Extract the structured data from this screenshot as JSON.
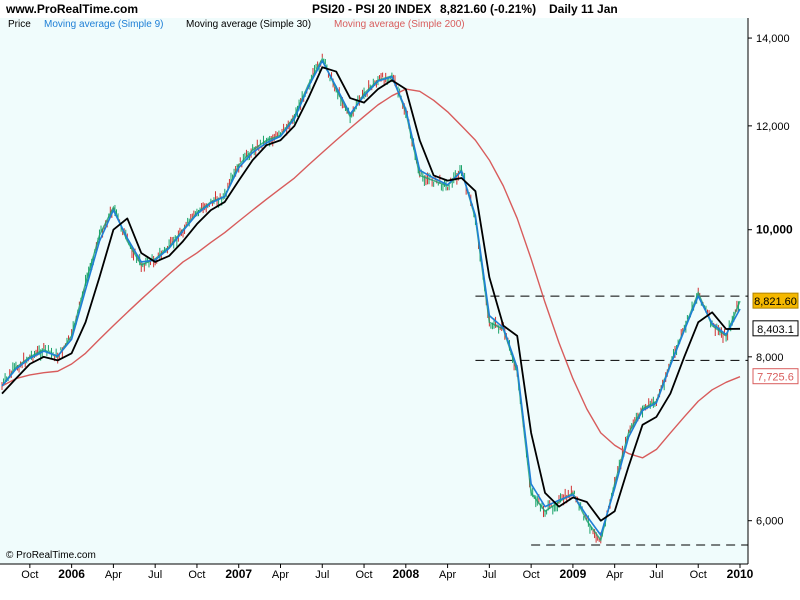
{
  "header": {
    "site": "www.ProRealTime.com",
    "title": "PSI20 - PSI 20 INDEX",
    "quote": "8,821.60 (-0.21%)",
    "period": "Daily 11 Jan"
  },
  "legend": [
    {
      "label": "Price",
      "color": "#000000"
    },
    {
      "label": "Moving average (Simple 9)",
      "color": "#1e7fd6"
    },
    {
      "label": "Moving average (Simple 30)",
      "color": "#000000"
    },
    {
      "label": "Moving average (Simple 200)",
      "color": "#d85c5c"
    }
  ],
  "copyright": "© ProRealTime.com",
  "colors": {
    "background": "#f0fcfc",
    "price_up": "#1aa36a",
    "price_down": "#d23232",
    "ma9": "#1e7fd6",
    "ma30": "#000000",
    "ma200": "#d85c5c",
    "last_label_bg": "#f5b800"
  },
  "chart_data": {
    "type": "line",
    "x_range": [
      "2005-08",
      "2010-01"
    ],
    "ylim": [
      5600,
      14100
    ],
    "y_scale": "log",
    "x_ticks": [
      {
        "label": "Oct",
        "date": "2005-10",
        "bold": false
      },
      {
        "label": "2006",
        "date": "2006-01",
        "bold": true
      },
      {
        "label": "Apr",
        "date": "2006-04",
        "bold": false
      },
      {
        "label": "Jul",
        "date": "2006-07",
        "bold": false
      },
      {
        "label": "Oct",
        "date": "2006-10",
        "bold": false
      },
      {
        "label": "2007",
        "date": "2007-01",
        "bold": true
      },
      {
        "label": "Apr",
        "date": "2007-04",
        "bold": false
      },
      {
        "label": "Jul",
        "date": "2007-07",
        "bold": false
      },
      {
        "label": "Oct",
        "date": "2007-10",
        "bold": false
      },
      {
        "label": "2008",
        "date": "2008-01",
        "bold": true
      },
      {
        "label": "Apr",
        "date": "2008-04",
        "bold": false
      },
      {
        "label": "Jul",
        "date": "2008-07",
        "bold": false
      },
      {
        "label": "Oct",
        "date": "2008-10",
        "bold": false
      },
      {
        "label": "2009",
        "date": "2009-01",
        "bold": true
      },
      {
        "label": "Apr",
        "date": "2009-04",
        "bold": false
      },
      {
        "label": "Jul",
        "date": "2009-07",
        "bold": false
      },
      {
        "label": "Oct",
        "date": "2009-10",
        "bold": false
      },
      {
        "label": "2010",
        "date": "2010-01",
        "bold": true
      }
    ],
    "y_ticks": [
      {
        "value": 14000,
        "label": "14,000",
        "bold": false
      },
      {
        "value": 12000,
        "label": "12,000",
        "bold": false
      },
      {
        "value": 10000,
        "label": "10,000",
        "bold": true
      },
      {
        "value": 8000,
        "label": "8,000",
        "bold": false
      },
      {
        "value": 6000,
        "label": "6,000",
        "bold": false
      }
    ],
    "price_labels": [
      {
        "text": "8,821.60",
        "value": 8821.6,
        "style": "last"
      },
      {
        "text": "8,403.1",
        "value": 8403.1,
        "style": "ma30"
      },
      {
        "text": "7,725.6",
        "value": 7725.6,
        "style": "ma200"
      }
    ],
    "dashed_levels": [
      {
        "value": 8900,
        "from": "2008-06",
        "to": "2010-01"
      },
      {
        "value": 7950,
        "from": "2008-06",
        "to": "2010-01"
      },
      {
        "value": 5750,
        "from": "2008-10",
        "to": "2010-01"
      }
    ],
    "series": [
      {
        "key": "price",
        "points": [
          [
            "2005-08",
            7600
          ],
          [
            "2005-09",
            7850
          ],
          [
            "2005-10",
            8000
          ],
          [
            "2005-11",
            8100
          ],
          [
            "2005-12",
            8000
          ],
          [
            "2006-01",
            8300
          ],
          [
            "2006-02",
            9100
          ],
          [
            "2006-03",
            9900
          ],
          [
            "2006-04",
            10400
          ],
          [
            "2006-05",
            9800
          ],
          [
            "2006-06",
            9400
          ],
          [
            "2006-07",
            9500
          ],
          [
            "2006-08",
            9700
          ],
          [
            "2006-09",
            10000
          ],
          [
            "2006-10",
            10300
          ],
          [
            "2006-11",
            10500
          ],
          [
            "2006-12",
            10600
          ],
          [
            "2007-01",
            11200
          ],
          [
            "2007-02",
            11500
          ],
          [
            "2007-03",
            11700
          ],
          [
            "2007-04",
            11800
          ],
          [
            "2007-05",
            12200
          ],
          [
            "2007-06",
            12900
          ],
          [
            "2007-07",
            13500
          ],
          [
            "2007-08",
            12800
          ],
          [
            "2007-09",
            12200
          ],
          [
            "2007-10",
            12700
          ],
          [
            "2007-11",
            13000
          ],
          [
            "2007-12",
            13100
          ],
          [
            "2008-01",
            12300
          ],
          [
            "2008-02",
            11000
          ],
          [
            "2008-03",
            10900
          ],
          [
            "2008-04",
            10800
          ],
          [
            "2008-05",
            11100
          ],
          [
            "2008-06",
            10200
          ],
          [
            "2008-07",
            8500
          ],
          [
            "2008-08",
            8400
          ],
          [
            "2008-09",
            7800
          ],
          [
            "2008-10",
            6300
          ],
          [
            "2008-11",
            6100
          ],
          [
            "2008-12",
            6200
          ],
          [
            "2009-01",
            6300
          ],
          [
            "2009-02",
            6000
          ],
          [
            "2009-03",
            5800
          ],
          [
            "2009-04",
            6400
          ],
          [
            "2009-05",
            7000
          ],
          [
            "2009-06",
            7300
          ],
          [
            "2009-07",
            7400
          ],
          [
            "2009-08",
            7900
          ],
          [
            "2009-09",
            8400
          ],
          [
            "2009-10",
            8950
          ],
          [
            "2009-11",
            8450
          ],
          [
            "2009-12",
            8300
          ],
          [
            "2010-01",
            8821.6
          ]
        ]
      },
      {
        "key": "ma9",
        "points": [
          [
            "2005-08",
            7600
          ],
          [
            "2005-09",
            7830
          ],
          [
            "2005-10",
            7980
          ],
          [
            "2005-11",
            8080
          ],
          [
            "2005-12",
            8010
          ],
          [
            "2006-01",
            8250
          ],
          [
            "2006-02",
            9000
          ],
          [
            "2006-03",
            9800
          ],
          [
            "2006-04",
            10350
          ],
          [
            "2006-05",
            9850
          ],
          [
            "2006-06",
            9450
          ],
          [
            "2006-07",
            9480
          ],
          [
            "2006-08",
            9680
          ],
          [
            "2006-09",
            9980
          ],
          [
            "2006-10",
            10280
          ],
          [
            "2006-11",
            10480
          ],
          [
            "2006-12",
            10600
          ],
          [
            "2007-01",
            11150
          ],
          [
            "2007-02",
            11450
          ],
          [
            "2007-03",
            11650
          ],
          [
            "2007-04",
            11780
          ],
          [
            "2007-05",
            12150
          ],
          [
            "2007-06",
            12850
          ],
          [
            "2007-07",
            13450
          ],
          [
            "2007-08",
            12850
          ],
          [
            "2007-09",
            12250
          ],
          [
            "2007-10",
            12650
          ],
          [
            "2007-11",
            12980
          ],
          [
            "2007-12",
            13080
          ],
          [
            "2008-01",
            12350
          ],
          [
            "2008-02",
            11100
          ],
          [
            "2008-03",
            10950
          ],
          [
            "2008-04",
            10820
          ],
          [
            "2008-05",
            11080
          ],
          [
            "2008-06",
            10250
          ],
          [
            "2008-07",
            8600
          ],
          [
            "2008-08",
            8420
          ],
          [
            "2008-09",
            7850
          ],
          [
            "2008-10",
            6400
          ],
          [
            "2008-11",
            6150
          ],
          [
            "2008-12",
            6220
          ],
          [
            "2009-01",
            6280
          ],
          [
            "2009-02",
            6050
          ],
          [
            "2009-03",
            5850
          ],
          [
            "2009-04",
            6350
          ],
          [
            "2009-05",
            6950
          ],
          [
            "2009-06",
            7280
          ],
          [
            "2009-07",
            7380
          ],
          [
            "2009-08",
            7880
          ],
          [
            "2009-09",
            8380
          ],
          [
            "2009-10",
            8900
          ],
          [
            "2009-11",
            8480
          ],
          [
            "2009-12",
            8320
          ],
          [
            "2010-01",
            8700
          ]
        ]
      },
      {
        "key": "ma30",
        "points": [
          [
            "2005-08",
            7500
          ],
          [
            "2005-09",
            7700
          ],
          [
            "2005-10",
            7900
          ],
          [
            "2005-11",
            8000
          ],
          [
            "2005-12",
            7950
          ],
          [
            "2006-01",
            8050
          ],
          [
            "2006-02",
            8500
          ],
          [
            "2006-03",
            9200
          ],
          [
            "2006-04",
            10000
          ],
          [
            "2006-05",
            10200
          ],
          [
            "2006-06",
            9600
          ],
          [
            "2006-07",
            9450
          ],
          [
            "2006-08",
            9550
          ],
          [
            "2006-09",
            9800
          ],
          [
            "2006-10",
            10100
          ],
          [
            "2006-11",
            10350
          ],
          [
            "2006-12",
            10500
          ],
          [
            "2007-01",
            10900
          ],
          [
            "2007-02",
            11300
          ],
          [
            "2007-03",
            11600
          ],
          [
            "2007-04",
            11700
          ],
          [
            "2007-05",
            12000
          ],
          [
            "2007-06",
            12600
          ],
          [
            "2007-07",
            13300
          ],
          [
            "2007-08",
            13200
          ],
          [
            "2007-09",
            12600
          ],
          [
            "2007-10",
            12500
          ],
          [
            "2007-11",
            12800
          ],
          [
            "2007-12",
            13000
          ],
          [
            "2008-01",
            12800
          ],
          [
            "2008-02",
            11700
          ],
          [
            "2008-03",
            11000
          ],
          [
            "2008-04",
            10900
          ],
          [
            "2008-05",
            10950
          ],
          [
            "2008-06",
            10700
          ],
          [
            "2008-07",
            9200
          ],
          [
            "2008-08",
            8450
          ],
          [
            "2008-09",
            8300
          ],
          [
            "2008-10",
            7000
          ],
          [
            "2008-11",
            6300
          ],
          [
            "2008-12",
            6150
          ],
          [
            "2009-01",
            6250
          ],
          [
            "2009-02",
            6200
          ],
          [
            "2009-03",
            6000
          ],
          [
            "2009-04",
            6100
          ],
          [
            "2009-05",
            6600
          ],
          [
            "2009-06",
            7100
          ],
          [
            "2009-07",
            7200
          ],
          [
            "2009-08",
            7500
          ],
          [
            "2009-09",
            8000
          ],
          [
            "2009-10",
            8500
          ],
          [
            "2009-11",
            8650
          ],
          [
            "2009-12",
            8400
          ],
          [
            "2010-01",
            8403.1
          ]
        ]
      },
      {
        "key": "ma200",
        "points": [
          [
            "2005-08",
            7600
          ],
          [
            "2005-09",
            7700
          ],
          [
            "2005-10",
            7750
          ],
          [
            "2005-11",
            7780
          ],
          [
            "2005-12",
            7800
          ],
          [
            "2006-01",
            7900
          ],
          [
            "2006-02",
            8050
          ],
          [
            "2006-03",
            8250
          ],
          [
            "2006-04",
            8450
          ],
          [
            "2006-05",
            8650
          ],
          [
            "2006-06",
            8850
          ],
          [
            "2006-07",
            9050
          ],
          [
            "2006-08",
            9250
          ],
          [
            "2006-09",
            9450
          ],
          [
            "2006-10",
            9600
          ],
          [
            "2006-11",
            9780
          ],
          [
            "2006-12",
            9950
          ],
          [
            "2007-01",
            10150
          ],
          [
            "2007-02",
            10350
          ],
          [
            "2007-03",
            10550
          ],
          [
            "2007-04",
            10750
          ],
          [
            "2007-05",
            10950
          ],
          [
            "2007-06",
            11200
          ],
          [
            "2007-07",
            11450
          ],
          [
            "2007-08",
            11700
          ],
          [
            "2007-09",
            11950
          ],
          [
            "2007-10",
            12200
          ],
          [
            "2007-11",
            12450
          ],
          [
            "2007-12",
            12650
          ],
          [
            "2008-01",
            12800
          ],
          [
            "2008-02",
            12750
          ],
          [
            "2008-03",
            12550
          ],
          [
            "2008-04",
            12300
          ],
          [
            "2008-05",
            12000
          ],
          [
            "2008-06",
            11700
          ],
          [
            "2008-07",
            11300
          ],
          [
            "2008-08",
            10800
          ],
          [
            "2008-09",
            10200
          ],
          [
            "2008-10",
            9500
          ],
          [
            "2008-11",
            8800
          ],
          [
            "2008-12",
            8200
          ],
          [
            "2009-01",
            7700
          ],
          [
            "2009-02",
            7300
          ],
          [
            "2009-03",
            7000
          ],
          [
            "2009-04",
            6850
          ],
          [
            "2009-05",
            6750
          ],
          [
            "2009-06",
            6700
          ],
          [
            "2009-07",
            6800
          ],
          [
            "2009-08",
            7000
          ],
          [
            "2009-09",
            7200
          ],
          [
            "2009-10",
            7400
          ],
          [
            "2009-11",
            7550
          ],
          [
            "2009-12",
            7650
          ],
          [
            "2010-01",
            7725.6
          ]
        ]
      }
    ]
  }
}
